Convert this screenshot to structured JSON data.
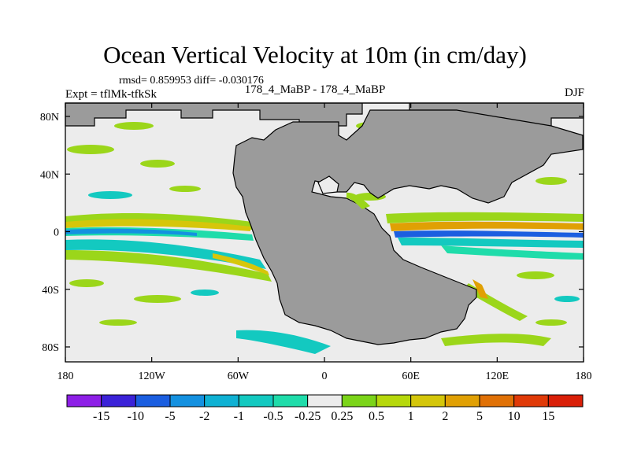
{
  "chart_data": {
    "type": "heatmap",
    "title": "Ocean Vertical Velocity at 10m (in cm/day)",
    "stats_line": "rmsd= 0.859953 diff= -0.030176",
    "experiment_label": "Expt = tflMk-tfkSk",
    "subtitle": "178_4_MaBP - 178_4_MaBP",
    "season": "DJF",
    "x_ticks": [
      "180",
      "120W",
      "60W",
      "0",
      "60E",
      "120E",
      "180"
    ],
    "y_ticks": [
      "80N",
      "40N",
      "0",
      "40S",
      "80S"
    ],
    "xlim": [
      -180,
      180
    ],
    "ylim": [
      -90,
      90
    ],
    "colorbar": {
      "labels": [
        "-15",
        "-10",
        "-5",
        "-2",
        "-1",
        "-0.5",
        "-0.25",
        "0.25",
        "0.5",
        "1",
        "2",
        "5",
        "10",
        "15"
      ],
      "colors": [
        "#8d1fe6",
        "#3b22d8",
        "#1b5ee0",
        "#1491e0",
        "#0fb1d3",
        "#13c9c0",
        "#1fdcaa",
        "#ececec",
        "#7bd419",
        "#b6d80c",
        "#d4c60a",
        "#e0a004",
        "#e07106",
        "#e03a08",
        "#d91f08"
      ]
    },
    "land_color": "#9b9b9b",
    "near_zero_color": "#ececec"
  }
}
